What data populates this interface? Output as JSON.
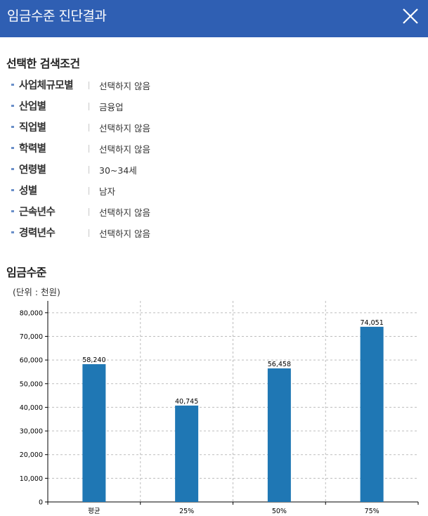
{
  "header": {
    "title": "임금수준 진단결과",
    "close_icon": "close-icon"
  },
  "conditions_title": "선택한 검색조건",
  "conditions": [
    {
      "label": "사업체규모별",
      "value": "선택하지 않음"
    },
    {
      "label": "산업별",
      "value": "금융업"
    },
    {
      "label": "직업별",
      "value": "선택하지 않음"
    },
    {
      "label": "학력별",
      "value": "선택하지 않음"
    },
    {
      "label": "연령별",
      "value": "30~34세"
    },
    {
      "label": "성별",
      "value": "남자"
    },
    {
      "label": "근속년수",
      "value": "선택하지 않음"
    },
    {
      "label": "경력년수",
      "value": "선택하지 않음"
    }
  ],
  "wage_title": "임금수준",
  "unit": "(단위 : 천원)",
  "colors": {
    "header": "#2f5fb3",
    "bar": "#1f77b4",
    "bullet": "#6a8fc9"
  },
  "chart_data": {
    "type": "bar",
    "title": "",
    "xlabel": "",
    "ylabel": "",
    "categories": [
      "평균",
      "25%",
      "50%",
      "75%"
    ],
    "values": [
      58240,
      40745,
      56458,
      74051
    ],
    "value_labels": [
      "58,240",
      "40,745",
      "56,458",
      "74,051"
    ],
    "ylim": [
      0,
      85000
    ],
    "yticks": [
      0,
      10000,
      20000,
      30000,
      40000,
      50000,
      60000,
      70000,
      80000
    ],
    "ytick_labels": [
      "0",
      "10,000",
      "20,000",
      "30,000",
      "40,000",
      "50,000",
      "60,000",
      "70,000",
      "80,000"
    ],
    "grid": true,
    "legend": "none"
  }
}
